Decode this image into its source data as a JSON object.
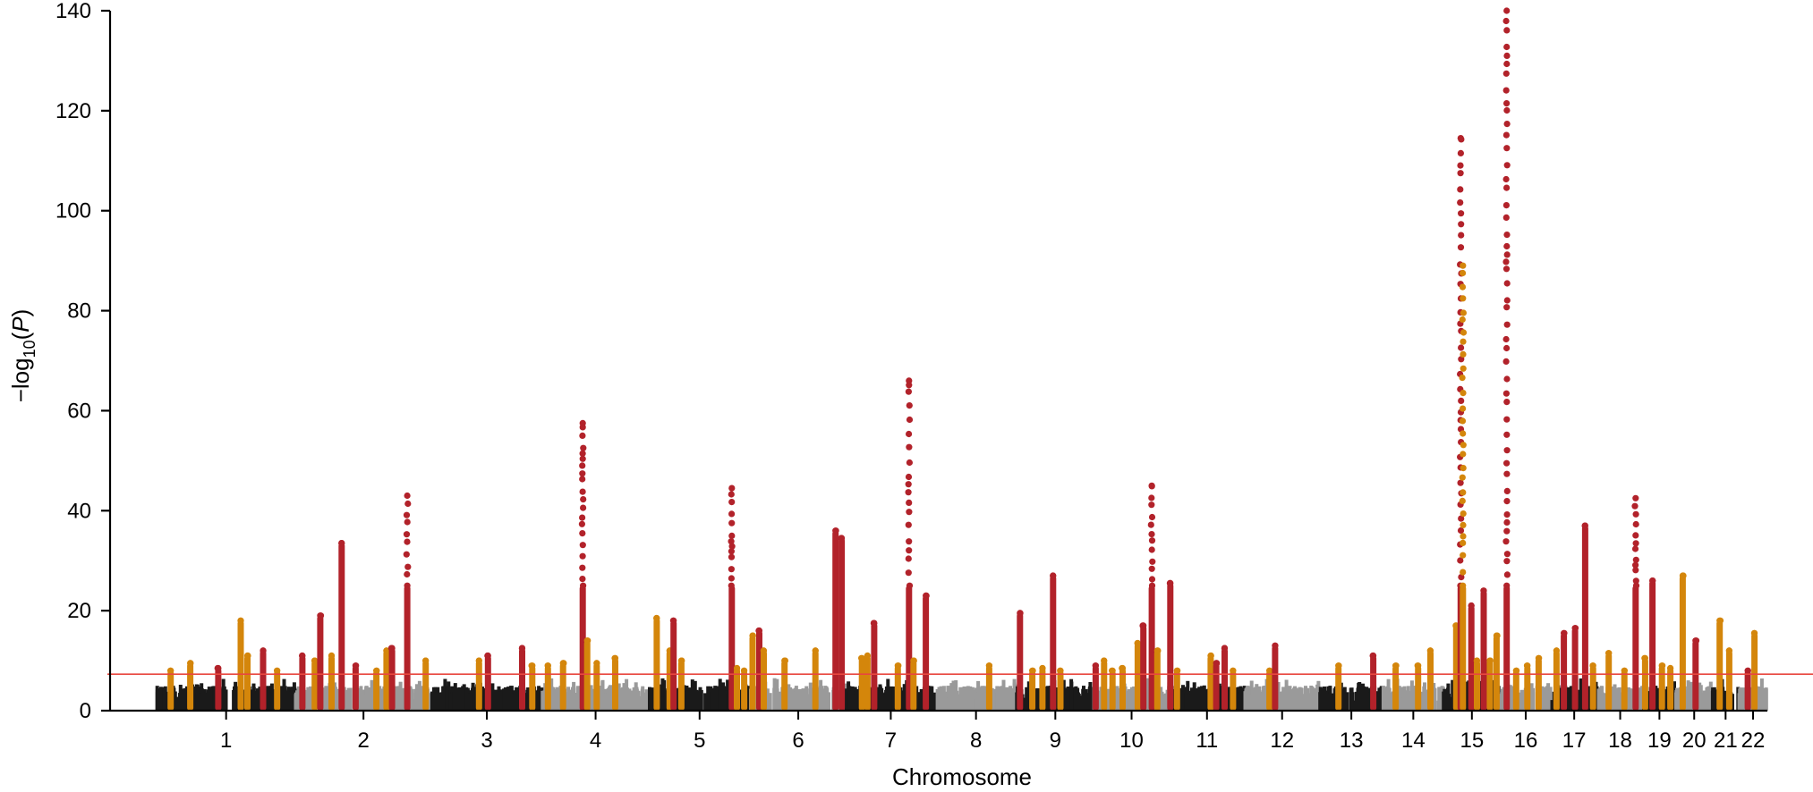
{
  "chart_data": {
    "type": "scatter",
    "subtype": "manhattan",
    "title": "",
    "xlabel": "Chromosome",
    "ylabel": {
      "prefix": "−log",
      "subscript": "10",
      "open": "(",
      "var": "P",
      "close": ")"
    },
    "ylim": [
      0,
      140
    ],
    "yticks": [
      0,
      20,
      40,
      60,
      80,
      100,
      120,
      140
    ],
    "grid": false,
    "legend": "none",
    "significance_threshold": 7.3,
    "colors": {
      "chrom_odd": "#1a1a1a",
      "chrom_even": "#9a9a9a",
      "locus_gold": "#d4860b",
      "locus_red": "#b2222a",
      "threshold_line": "#e8473f",
      "axis": "#000000"
    },
    "chromosomes": [
      {
        "label": "1",
        "start": 0,
        "end": 248
      },
      {
        "label": "2",
        "start": 248,
        "end": 490
      },
      {
        "label": "3",
        "start": 490,
        "end": 688
      },
      {
        "label": "4",
        "start": 688,
        "end": 878
      },
      {
        "label": "5",
        "start": 878,
        "end": 1059
      },
      {
        "label": "6",
        "start": 1059,
        "end": 1230
      },
      {
        "label": "7",
        "start": 1230,
        "end": 1389
      },
      {
        "label": "8",
        "start": 1389,
        "end": 1534
      },
      {
        "label": "9",
        "start": 1534,
        "end": 1672
      },
      {
        "label": "10",
        "start": 1672,
        "end": 1806
      },
      {
        "label": "11",
        "start": 1806,
        "end": 1941
      },
      {
        "label": "12",
        "start": 1941,
        "end": 2074
      },
      {
        "label": "13",
        "start": 2074,
        "end": 2188
      },
      {
        "label": "14",
        "start": 2188,
        "end": 2295
      },
      {
        "label": "15",
        "start": 2295,
        "end": 2397
      },
      {
        "label": "16",
        "start": 2397,
        "end": 2487
      },
      {
        "label": "17",
        "start": 2487,
        "end": 2570
      },
      {
        "label": "18",
        "start": 2570,
        "end": 2651
      },
      {
        "label": "19",
        "start": 2651,
        "end": 2710
      },
      {
        "label": "20",
        "start": 2710,
        "end": 2775
      },
      {
        "label": "21",
        "start": 2775,
        "end": 2822
      },
      {
        "label": "22",
        "start": 2822,
        "end": 2873
      }
    ],
    "loci": [
      {
        "chr": "1",
        "pos": 25,
        "color": "gold",
        "p": 8
      },
      {
        "chr": "1",
        "pos": 60,
        "color": "gold",
        "p": 9.5
      },
      {
        "chr": "1",
        "pos": 110,
        "color": "red",
        "p": 8.5
      },
      {
        "chr": "1",
        "pos": 150,
        "color": "gold",
        "p": 18
      },
      {
        "chr": "1",
        "pos": 162,
        "color": "gold",
        "p": 11
      },
      {
        "chr": "1",
        "pos": 190,
        "color": "red",
        "p": 12
      },
      {
        "chr": "1",
        "pos": 215,
        "color": "gold",
        "p": 8
      },
      {
        "chr": "2",
        "pos": 260,
        "color": "red",
        "p": 11
      },
      {
        "chr": "2",
        "pos": 282,
        "color": "gold",
        "p": 10
      },
      {
        "chr": "2",
        "pos": 292,
        "color": "red",
        "p": 19
      },
      {
        "chr": "2",
        "pos": 312,
        "color": "gold",
        "p": 11
      },
      {
        "chr": "2",
        "pos": 330,
        "color": "red",
        "p": 33.5
      },
      {
        "chr": "2",
        "pos": 355,
        "color": "red",
        "p": 9
      },
      {
        "chr": "2",
        "pos": 392,
        "color": "gold",
        "p": 8
      },
      {
        "chr": "2",
        "pos": 410,
        "color": "gold",
        "p": 12
      },
      {
        "chr": "2",
        "pos": 420,
        "color": "red",
        "p": 12.5
      },
      {
        "chr": "2",
        "pos": 447,
        "color": "red",
        "p": 43
      },
      {
        "chr": "2",
        "pos": 480,
        "color": "gold",
        "p": 10
      },
      {
        "chr": "3",
        "pos": 575,
        "color": "gold",
        "p": 10
      },
      {
        "chr": "3",
        "pos": 591,
        "color": "red",
        "p": 11
      },
      {
        "chr": "3",
        "pos": 652,
        "color": "red",
        "p": 12.5
      },
      {
        "chr": "3",
        "pos": 670,
        "color": "gold",
        "p": 9
      },
      {
        "chr": "4",
        "pos": 698,
        "color": "gold",
        "p": 9
      },
      {
        "chr": "4",
        "pos": 725,
        "color": "gold",
        "p": 9.5
      },
      {
        "chr": "4",
        "pos": 760,
        "color": "red",
        "p": 57.5
      },
      {
        "chr": "4",
        "pos": 768,
        "color": "gold",
        "p": 14
      },
      {
        "chr": "4",
        "pos": 785,
        "color": "gold",
        "p": 9.5
      },
      {
        "chr": "4",
        "pos": 818,
        "color": "gold",
        "p": 10.5
      },
      {
        "chr": "5",
        "pos": 892,
        "color": "gold",
        "p": 18.5
      },
      {
        "chr": "5",
        "pos": 915,
        "color": "gold",
        "p": 12
      },
      {
        "chr": "5",
        "pos": 922,
        "color": "red",
        "p": 18
      },
      {
        "chr": "5",
        "pos": 936,
        "color": "gold",
        "p": 10
      },
      {
        "chr": "5",
        "pos": 1026,
        "color": "red",
        "p": 44.5
      },
      {
        "chr": "5",
        "pos": 1035,
        "color": "gold",
        "p": 8.5
      },
      {
        "chr": "5",
        "pos": 1048,
        "color": "gold",
        "p": 8
      },
      {
        "chr": "6",
        "pos": 1063,
        "color": "gold",
        "p": 15
      },
      {
        "chr": "6",
        "pos": 1075,
        "color": "red",
        "p": 16
      },
      {
        "chr": "6",
        "pos": 1083,
        "color": "gold",
        "p": 12
      },
      {
        "chr": "6",
        "pos": 1120,
        "color": "gold",
        "p": 10
      },
      {
        "chr": "6",
        "pos": 1175,
        "color": "gold",
        "p": 12
      },
      {
        "chr": "6",
        "pos": 1211,
        "color": "red",
        "p": 36
      },
      {
        "chr": "6",
        "pos": 1222,
        "color": "red",
        "p": 34.5
      },
      {
        "chr": "7",
        "pos": 1258,
        "color": "gold",
        "p": 10.5
      },
      {
        "chr": "7",
        "pos": 1268,
        "color": "gold",
        "p": 11
      },
      {
        "chr": "7",
        "pos": 1280,
        "color": "red",
        "p": 17.5
      },
      {
        "chr": "7",
        "pos": 1322,
        "color": "gold",
        "p": 9
      },
      {
        "chr": "7",
        "pos": 1342,
        "color": "red",
        "p": 66
      },
      {
        "chr": "7",
        "pos": 1350,
        "color": "gold",
        "p": 10
      },
      {
        "chr": "7",
        "pos": 1372,
        "color": "red",
        "p": 23
      },
      {
        "chr": "8",
        "pos": 1485,
        "color": "gold",
        "p": 9
      },
      {
        "chr": "9",
        "pos": 1540,
        "color": "red",
        "p": 19.5
      },
      {
        "chr": "9",
        "pos": 1562,
        "color": "gold",
        "p": 8
      },
      {
        "chr": "9",
        "pos": 1580,
        "color": "gold",
        "p": 8.5
      },
      {
        "chr": "9",
        "pos": 1599,
        "color": "red",
        "p": 27
      },
      {
        "chr": "9",
        "pos": 1612,
        "color": "gold",
        "p": 8
      },
      {
        "chr": "10",
        "pos": 1675,
        "color": "red",
        "p": 9
      },
      {
        "chr": "10",
        "pos": 1690,
        "color": "gold",
        "p": 10
      },
      {
        "chr": "10",
        "pos": 1705,
        "color": "gold",
        "p": 8
      },
      {
        "chr": "10",
        "pos": 1723,
        "color": "gold",
        "p": 8.5
      },
      {
        "chr": "10",
        "pos": 1750,
        "color": "gold",
        "p": 13.5
      },
      {
        "chr": "10",
        "pos": 1760,
        "color": "red",
        "p": 17
      },
      {
        "chr": "10",
        "pos": 1775,
        "color": "red",
        "p": 45
      },
      {
        "chr": "10",
        "pos": 1785,
        "color": "gold",
        "p": 12
      },
      {
        "chr": "11",
        "pos": 1808,
        "color": "red",
        "p": 25.5
      },
      {
        "chr": "11",
        "pos": 1820,
        "color": "gold",
        "p": 8
      },
      {
        "chr": "11",
        "pos": 1880,
        "color": "gold",
        "p": 11
      },
      {
        "chr": "11",
        "pos": 1890,
        "color": "red",
        "p": 9.5
      },
      {
        "chr": "11",
        "pos": 1905,
        "color": "red",
        "p": 12.5
      },
      {
        "chr": "11",
        "pos": 1920,
        "color": "gold",
        "p": 8
      },
      {
        "chr": "12",
        "pos": 1985,
        "color": "gold",
        "p": 8
      },
      {
        "chr": "12",
        "pos": 1995,
        "color": "red",
        "p": 13
      },
      {
        "chr": "13",
        "pos": 2108,
        "color": "gold",
        "p": 9
      },
      {
        "chr": "13",
        "pos": 2170,
        "color": "red",
        "p": 11
      },
      {
        "chr": "14",
        "pos": 2210,
        "color": "gold",
        "p": 9
      },
      {
        "chr": "14",
        "pos": 2250,
        "color": "gold",
        "p": 9
      },
      {
        "chr": "14",
        "pos": 2272,
        "color": "gold",
        "p": 12
      },
      {
        "chr": "15",
        "pos": 2318,
        "color": "gold",
        "p": 17
      },
      {
        "chr": "15",
        "pos": 2326,
        "color": "red",
        "p": 114.5
      },
      {
        "chr": "15",
        "pos": 2330,
        "color": "gold",
        "p": 89
      },
      {
        "chr": "15",
        "pos": 2345,
        "color": "red",
        "p": 21
      },
      {
        "chr": "15",
        "pos": 2355,
        "color": "gold",
        "p": 10
      },
      {
        "chr": "15",
        "pos": 2367,
        "color": "red",
        "p": 24
      },
      {
        "chr": "15",
        "pos": 2378,
        "color": "gold",
        "p": 10
      },
      {
        "chr": "15",
        "pos": 2390,
        "color": "gold",
        "p": 15
      },
      {
        "chr": "16",
        "pos": 2408,
        "color": "red",
        "p": 140
      },
      {
        "chr": "16",
        "pos": 2425,
        "color": "gold",
        "p": 8
      },
      {
        "chr": "16",
        "pos": 2445,
        "color": "gold",
        "p": 9
      },
      {
        "chr": "16",
        "pos": 2465,
        "color": "gold",
        "p": 10.5
      },
      {
        "chr": "17",
        "pos": 2497,
        "color": "gold",
        "p": 12
      },
      {
        "chr": "17",
        "pos": 2510,
        "color": "red",
        "p": 15.5
      },
      {
        "chr": "17",
        "pos": 2530,
        "color": "red",
        "p": 16.5
      },
      {
        "chr": "17",
        "pos": 2548,
        "color": "red",
        "p": 37
      },
      {
        "chr": "17",
        "pos": 2562,
        "color": "gold",
        "p": 9
      },
      {
        "chr": "18",
        "pos": 2590,
        "color": "gold",
        "p": 11.5
      },
      {
        "chr": "18",
        "pos": 2618,
        "color": "gold",
        "p": 8
      },
      {
        "chr": "18",
        "pos": 2638,
        "color": "red",
        "p": 42.5
      },
      {
        "chr": "19",
        "pos": 2655,
        "color": "gold",
        "p": 10.5
      },
      {
        "chr": "19",
        "pos": 2668,
        "color": "red",
        "p": 26
      },
      {
        "chr": "19",
        "pos": 2685,
        "color": "gold",
        "p": 9
      },
      {
        "chr": "19",
        "pos": 2700,
        "color": "gold",
        "p": 8.5
      },
      {
        "chr": "20",
        "pos": 2722,
        "color": "gold",
        "p": 27
      },
      {
        "chr": "20",
        "pos": 2745,
        "color": "red",
        "p": 14
      },
      {
        "chr": "21",
        "pos": 2788,
        "color": "gold",
        "p": 18
      },
      {
        "chr": "21",
        "pos": 2805,
        "color": "gold",
        "p": 12
      },
      {
        "chr": "22",
        "pos": 2838,
        "color": "red",
        "p": 8
      },
      {
        "chr": "22",
        "pos": 2850,
        "color": "gold",
        "p": 15.5
      }
    ]
  }
}
